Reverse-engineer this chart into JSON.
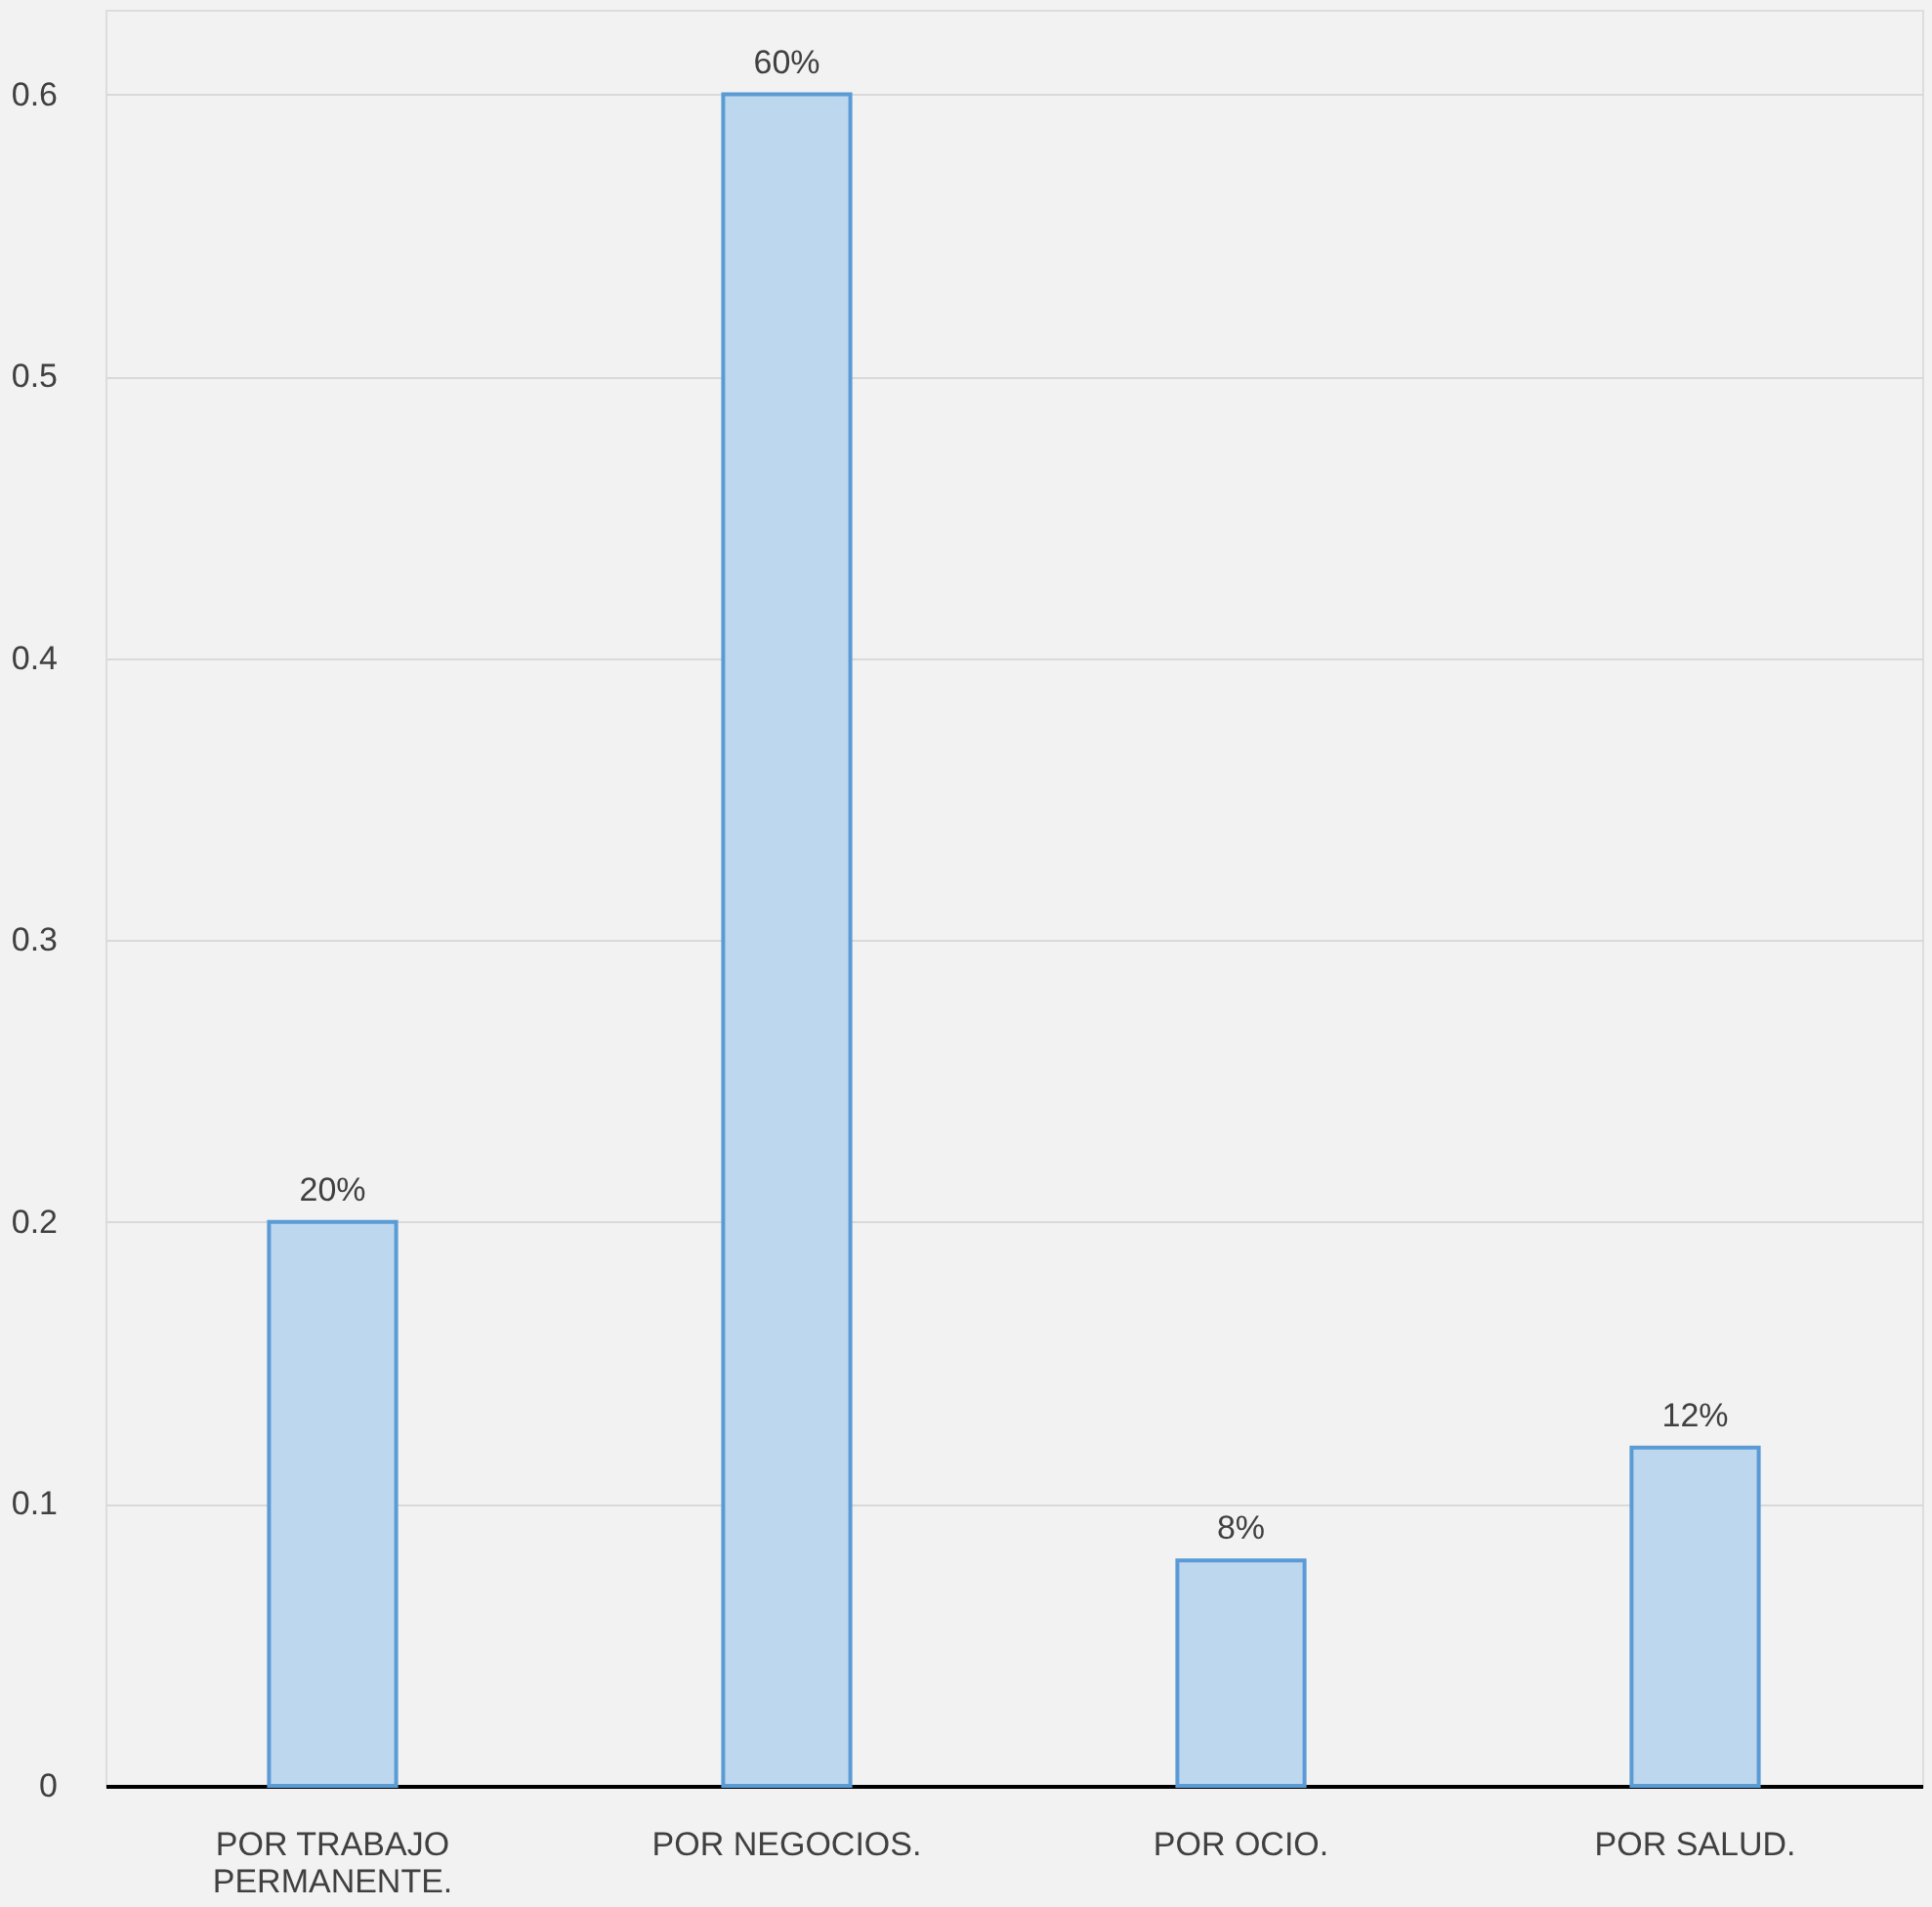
{
  "chart_data": {
    "type": "bar",
    "categories": [
      "POR TRABAJO PERMANENTE.",
      "POR NEGOCIOS.",
      "POR OCIO.",
      "POR SALUD."
    ],
    "values": [
      0.2,
      0.6,
      0.08,
      0.12
    ],
    "value_labels": [
      "20%",
      "60%",
      "8%",
      "12%"
    ],
    "color": "#bdd7ee",
    "ylim": [
      0,
      0.63
    ],
    "yticks": [
      0,
      0.1,
      0.2,
      0.3,
      0.4,
      0.5,
      0.6
    ],
    "grid": "y"
  }
}
